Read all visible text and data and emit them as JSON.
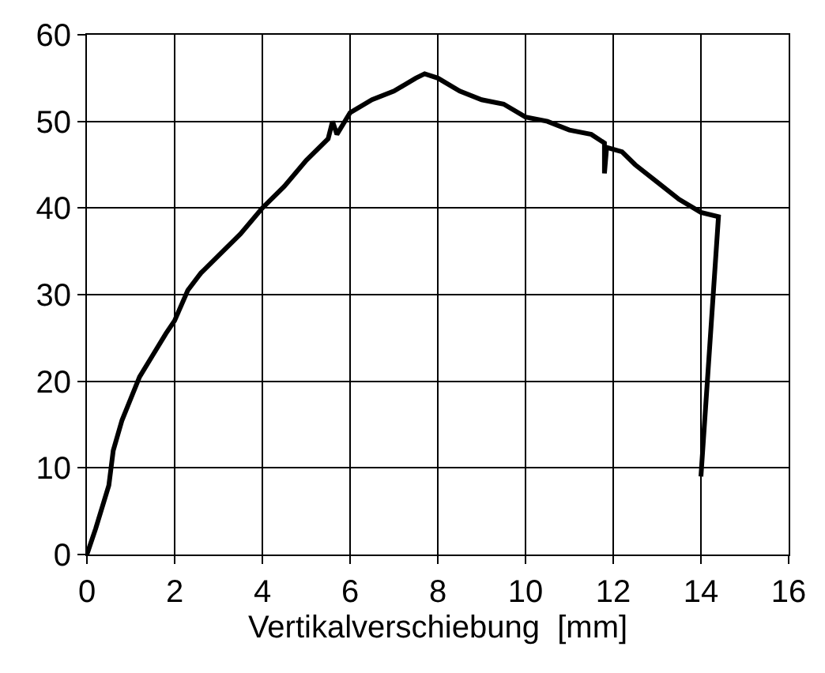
{
  "chart_data": {
    "type": "line",
    "xlabel": "Vertikalverschiebung  [mm]",
    "series": [
      {
        "color": "#000000",
        "x": [
          0,
          0.2,
          0.5,
          0.6,
          0.8,
          1,
          1.2,
          1.5,
          1.8,
          2,
          2.3,
          2.6,
          3,
          3.5,
          4,
          4.5,
          5,
          5.5,
          5.6,
          5.7,
          6,
          6.5,
          7,
          7.5,
          7.7,
          8,
          8.5,
          9,
          9.5,
          10,
          10.5,
          11,
          11.5,
          11.8,
          11.8,
          11.85,
          12.2,
          12.5,
          13,
          13.5,
          14,
          14.4,
          14.0
        ],
        "values": [
          0,
          3,
          8,
          12,
          15.5,
          18,
          20.5,
          23,
          25.5,
          27,
          30.5,
          32.5,
          34.5,
          37,
          40,
          42.5,
          45.5,
          48,
          50,
          48.5,
          51,
          52.5,
          53.5,
          55,
          55.5,
          55,
          53.5,
          52.5,
          52,
          50.5,
          50,
          49,
          48.5,
          47.5,
          44,
          47,
          46.5,
          45,
          43,
          41,
          39.5,
          39,
          9
        ]
      }
    ],
    "xlim": [
      0,
      16
    ],
    "xticks": [
      0,
      2,
      4,
      6,
      8,
      10,
      12,
      14,
      16
    ],
    "ylim": [
      0,
      60
    ],
    "yticks": [
      0,
      10,
      20,
      30,
      40,
      50,
      60
    ],
    "grid": true,
    "line_style": "solid",
    "marker": "none"
  }
}
